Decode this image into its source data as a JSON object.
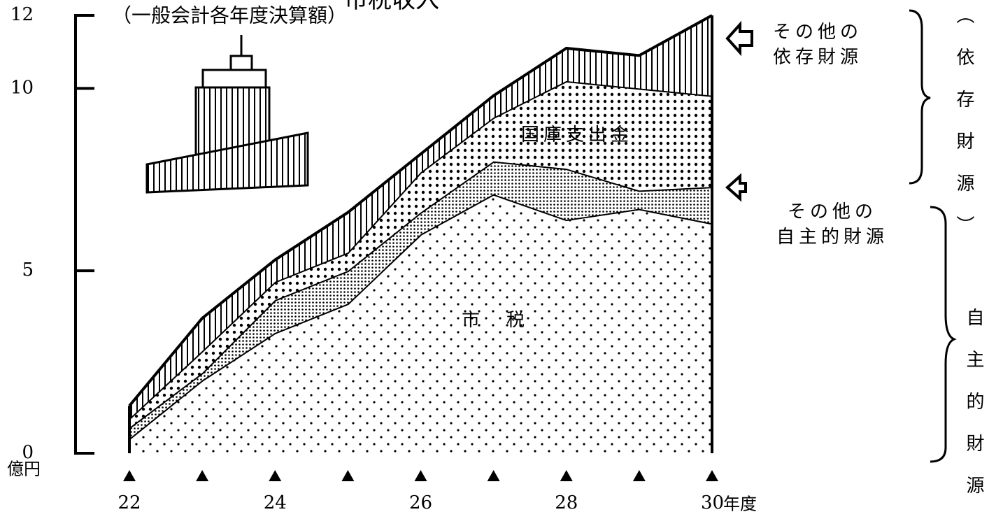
{
  "chart_data": {
    "type": "stacked_area",
    "title": "市税収入",
    "subtitle": "（一般会計各年度決算額）",
    "y_unit": "億円",
    "x_unit": "年度",
    "categories": [
      "22",
      null,
      "24",
      null,
      "26",
      null,
      "28",
      null,
      "30"
    ],
    "series": [
      {
        "name": "市　税",
        "color": "#000000",
        "pattern": "sparse-dots",
        "values": [
          0.4,
          2.0,
          3.3,
          4.1,
          6.0,
          7.1,
          6.4,
          6.7,
          6.3
        ]
      },
      {
        "name": "その他の\n自主的財源",
        "color": "#000000",
        "pattern": "fine-dots",
        "values": [
          0.3,
          0.2,
          0.9,
          0.9,
          0.6,
          0.9,
          1.4,
          0.5,
          1.0
        ]
      },
      {
        "name": "国庫支出金",
        "color": "#000000",
        "pattern": "dots",
        "values": [
          0.25,
          0.6,
          0.5,
          0.5,
          1.1,
          1.2,
          2.4,
          2.8,
          2.5
        ]
      },
      {
        "name": "その他の\n依存財源",
        "color": "#000000",
        "pattern": "vertical-lines",
        "values": [
          0.35,
          0.9,
          0.6,
          1.1,
          0.5,
          0.6,
          0.9,
          0.9,
          2.2
        ]
      }
    ],
    "groups": [
      "（依存財源）",
      "自主的財源"
    ],
    "ylim": [
      0,
      12
    ],
    "yticks": [
      0,
      5,
      10,
      12
    ]
  }
}
